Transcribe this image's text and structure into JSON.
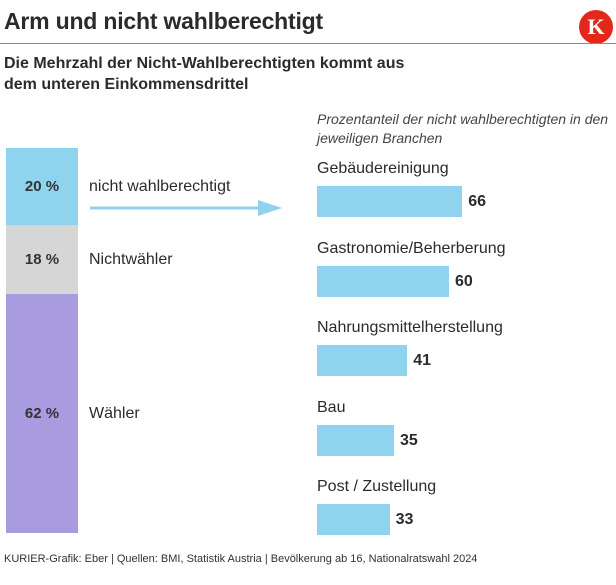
{
  "header": {
    "title": "Arm und nicht wahlberechtigt",
    "logo_letter": "K",
    "subtitle": "Die Mehrzahl der Nicht-Wahlberechtigten kommt aus dem unteren Einkommensdrittel"
  },
  "colors": {
    "nicht_wahlberechtigt": "#8fd3ef",
    "nichtwaehler": "#d6d6d6",
    "waehler": "#a89be0",
    "logo": "#e3271b"
  },
  "chart_data": [
    {
      "type": "bar",
      "orientation": "stacked-vertical",
      "title": "Unteres Einkommensdrittel",
      "segments": [
        {
          "label": "nicht wahlberechtigt",
          "value": 20,
          "display": "20 %"
        },
        {
          "label": "Nichtwähler",
          "value": 18,
          "display": "18 %"
        },
        {
          "label": "Wähler",
          "value": 62,
          "display": "62 %"
        }
      ],
      "unit": "%"
    },
    {
      "type": "bar",
      "orientation": "horizontal",
      "title": "Prozentanteil der nicht wahlberechtigten in den jeweiligen Branchen",
      "categories": [
        "Gebäudereinigung",
        "Gastronomie/Beherberung",
        "Nahrungsmittelherstellung",
        "Bau",
        "Post / Zustellung"
      ],
      "values": [
        66,
        60,
        41,
        35,
        33
      ],
      "xlim": [
        0,
        100
      ]
    }
  ],
  "footer": "KURIER-Grafik: Eber | Quellen: BMI, Statistik Austria | Bevölkerung ab 16, Nationalratswahl 2024"
}
